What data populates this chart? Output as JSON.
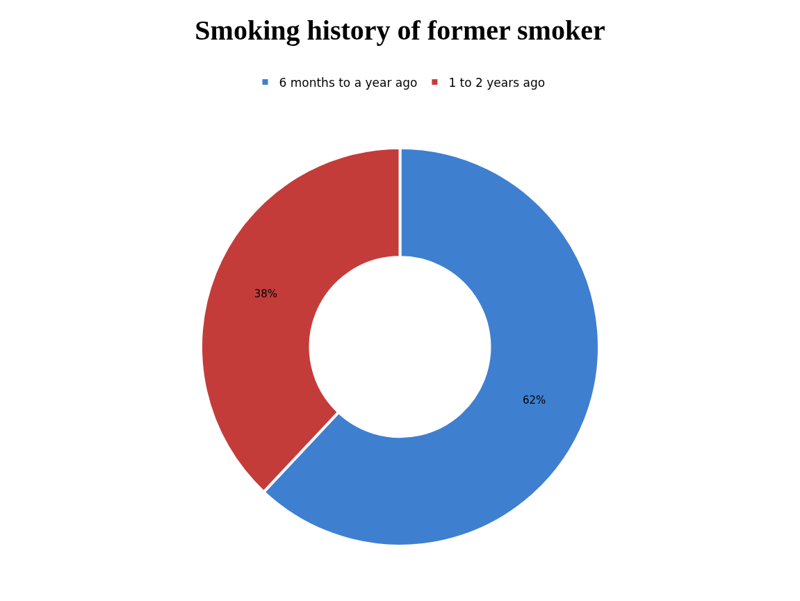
{
  "chart_data": {
    "type": "donut",
    "title": "Smoking history of former smoker",
    "categories": [
      "6 months to a year ago",
      "1 to 2 years ago"
    ],
    "values": [
      62,
      38
    ],
    "colors": [
      "#3f7fd0",
      "#c43c3a"
    ],
    "value_labels": [
      "62%",
      "38%"
    ],
    "legend": "top"
  }
}
